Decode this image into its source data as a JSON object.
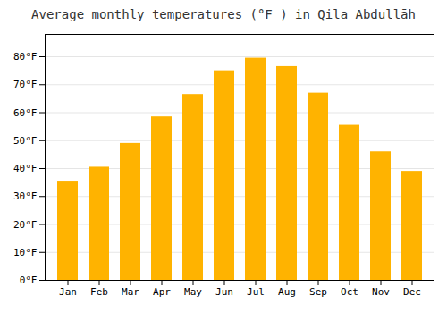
{
  "chart_data": {
    "type": "bar",
    "title": "Average monthly temperatures (°F ) in Qila Abdullāh",
    "categories": [
      "Jan",
      "Feb",
      "Mar",
      "Apr",
      "May",
      "Jun",
      "Jul",
      "Aug",
      "Sep",
      "Oct",
      "Nov",
      "Dec"
    ],
    "values": [
      35.5,
      40.5,
      49.0,
      58.5,
      66.5,
      75.0,
      79.5,
      76.5,
      67.0,
      55.5,
      46.0,
      39.0
    ],
    "color": "#FFB300",
    "ylim": [
      0,
      88
    ],
    "yticks": [
      {
        "value": 0,
        "label": "0°F"
      },
      {
        "value": 10,
        "label": "10°F"
      },
      {
        "value": 20,
        "label": "20°F"
      },
      {
        "value": 30,
        "label": "30°F"
      },
      {
        "value": 40,
        "label": "40°F"
      },
      {
        "value": 50,
        "label": "50°F"
      },
      {
        "value": 60,
        "label": "60°F"
      },
      {
        "value": 70,
        "label": "70°F"
      },
      {
        "value": 80,
        "label": "80°F"
      }
    ],
    "grid": true
  }
}
